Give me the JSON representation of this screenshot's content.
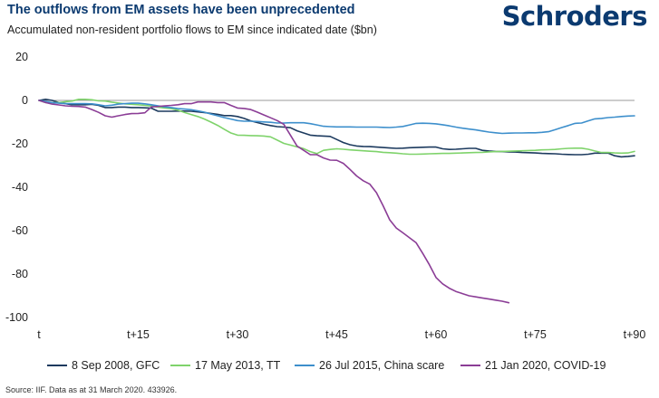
{
  "header": {
    "title": "The outflows from EM assets have been unprecedented",
    "subtitle": "Accumulated non-resident portfolio flows to EM since indicated date ($bn)",
    "logo_text": "Schroders"
  },
  "footer": {
    "source": "Source: IIF. Data as at 31 March 2020. 433926."
  },
  "colors": {
    "gfc": "#1c3a5e",
    "tt": "#7fd36b",
    "china": "#3d8fcc",
    "covid": "#8b3d96",
    "zero_line": "#9a9a9a"
  },
  "chart_data": {
    "type": "line",
    "title": "The outflows from EM assets have been unprecedented",
    "ylabel": "Accumulated non-resident portfolio flows to EM since indicated date ($bn)",
    "xlabel": "",
    "xlim": [
      0,
      90
    ],
    "ylim": [
      -100,
      20
    ],
    "x_ticks": [
      {
        "value": 0,
        "label": "t"
      },
      {
        "value": 15,
        "label": "t+15"
      },
      {
        "value": 30,
        "label": "t+30"
      },
      {
        "value": 45,
        "label": "t+45"
      },
      {
        "value": 60,
        "label": "t+60"
      },
      {
        "value": 75,
        "label": "t+75"
      },
      {
        "value": 90,
        "label": "t+90"
      }
    ],
    "y_ticks": [
      20,
      0,
      -20,
      -40,
      -60,
      -80,
      -100
    ],
    "legend_position": "bottom",
    "series": [
      {
        "name": "8 Sep 2008, GFC",
        "key": "gfc",
        "x": [
          0,
          1,
          2,
          3,
          4,
          5,
          6,
          7,
          8,
          9,
          10,
          11,
          12,
          13,
          14,
          15,
          16,
          17,
          18,
          19,
          20,
          21,
          22,
          23,
          24,
          25,
          26,
          27,
          28,
          29,
          30,
          31,
          32,
          33,
          34,
          35,
          36,
          37,
          38,
          39,
          40,
          41,
          42,
          43,
          44,
          45,
          46,
          47,
          48,
          49,
          50,
          51,
          52,
          53,
          54,
          55,
          56,
          57,
          58,
          59,
          60,
          61,
          62,
          63,
          64,
          65,
          66,
          67,
          68,
          69,
          70,
          71,
          72,
          73,
          74,
          75,
          76,
          77,
          78,
          79,
          80,
          81,
          82,
          83,
          84,
          85,
          86,
          87,
          88,
          89,
          90
        ],
        "values": [
          0,
          0.5,
          0,
          -1,
          -1.5,
          -2,
          -2,
          -2,
          -1.8,
          -2.3,
          -3.3,
          -3.3,
          -3.1,
          -3.1,
          -3.3,
          -3.3,
          -3.4,
          -3.6,
          -5,
          -5,
          -5,
          -4.9,
          -4.9,
          -5,
          -5.3,
          -5.6,
          -6,
          -6.4,
          -7,
          -7,
          -7.4,
          -8.3,
          -9.4,
          -10.2,
          -11,
          -11.6,
          -12.1,
          -12.3,
          -12.6,
          -14,
          -15,
          -16,
          -16.3,
          -16.4,
          -16.6,
          -18,
          -19.4,
          -20.4,
          -21,
          -21.2,
          -21.3,
          -21.5,
          -21.7,
          -21.9,
          -22.1,
          -22,
          -21.8,
          -21.7,
          -21.6,
          -21.5,
          -21.5,
          -22.3,
          -22.6,
          -22.5,
          -22.3,
          -22.1,
          -22.1,
          -23,
          -23.3,
          -23.5,
          -23.6,
          -23.7,
          -23.8,
          -24,
          -24.1,
          -24.2,
          -24.4,
          -24.5,
          -24.6,
          -24.8,
          -24.9,
          -25,
          -25,
          -24.8,
          -24.3,
          -24.3,
          -24.3,
          -25.5,
          -26,
          -25.8,
          -25.5
        ]
      },
      {
        "name": "17 May 2013, TT",
        "key": "tt",
        "x": [
          0,
          1,
          2,
          3,
          4,
          5,
          6,
          7,
          8,
          9,
          10,
          11,
          12,
          13,
          14,
          15,
          16,
          17,
          18,
          19,
          20,
          21,
          22,
          23,
          24,
          25,
          26,
          27,
          28,
          29,
          30,
          31,
          32,
          33,
          34,
          35,
          36,
          37,
          38,
          39,
          40,
          41,
          42,
          43,
          44,
          45,
          46,
          47,
          48,
          49,
          50,
          51,
          52,
          53,
          54,
          55,
          56,
          57,
          58,
          59,
          60,
          61,
          62,
          63,
          64,
          65,
          66,
          67,
          68,
          69,
          70,
          71,
          72,
          73,
          74,
          75,
          76,
          77,
          78,
          79,
          80,
          81,
          82,
          83,
          84,
          85,
          86,
          87,
          88,
          89,
          90
        ],
        "values": [
          0,
          -1,
          -1,
          -1,
          -0.6,
          -0.3,
          0.5,
          0.5,
          0.3,
          -0.2,
          -0.3,
          -0.8,
          -1.2,
          -1.6,
          -1.8,
          -2,
          -2.3,
          -2.6,
          -3.1,
          -3.5,
          -3.8,
          -4.5,
          -5.6,
          -6.5,
          -7.4,
          -8.6,
          -10,
          -11.5,
          -13.3,
          -15,
          -16,
          -16.1,
          -16.2,
          -16.3,
          -16.4,
          -16.8,
          -18.3,
          -19.8,
          -20.6,
          -21.4,
          -22.2,
          -23.6,
          -24.5,
          -23,
          -22.6,
          -22.3,
          -22.5,
          -22.8,
          -23,
          -23.2,
          -23.4,
          -23.6,
          -23.9,
          -24.1,
          -24.3,
          -24.6,
          -24.8,
          -24.8,
          -24.7,
          -24.6,
          -24.5,
          -24.4,
          -24.4,
          -24.3,
          -24.2,
          -24.1,
          -24,
          -23.9,
          -23.7,
          -23.6,
          -23.5,
          -23.4,
          -23.3,
          -23.2,
          -23.1,
          -23,
          -22.8,
          -22.7,
          -22.6,
          -22.3,
          -22.1,
          -22,
          -22,
          -22.5,
          -23.3,
          -24,
          -24,
          -24.2,
          -24.3,
          -24.2,
          -23.5
        ]
      },
      {
        "name": "26 Jul 2015, China scare",
        "key": "china",
        "x": [
          0,
          1,
          2,
          3,
          4,
          5,
          6,
          7,
          8,
          9,
          10,
          11,
          12,
          13,
          14,
          15,
          16,
          17,
          18,
          19,
          20,
          21,
          22,
          23,
          24,
          25,
          26,
          27,
          28,
          29,
          30,
          31,
          32,
          33,
          34,
          35,
          36,
          37,
          38,
          39,
          40,
          41,
          42,
          43,
          44,
          45,
          46,
          47,
          48,
          49,
          50,
          51,
          52,
          53,
          54,
          55,
          56,
          57,
          58,
          59,
          60,
          61,
          62,
          63,
          64,
          65,
          66,
          67,
          68,
          69,
          70,
          71,
          72,
          73,
          74,
          75,
          76,
          77,
          78,
          79,
          80,
          81,
          82,
          83,
          84,
          85,
          86,
          87,
          88,
          89,
          90
        ],
        "values": [
          0,
          -0.5,
          -1,
          -1.3,
          -1.5,
          -1.5,
          -1.5,
          -1.5,
          -1.6,
          -2,
          -2.5,
          -2.2,
          -1.7,
          -1.5,
          -1.3,
          -1.3,
          -1.6,
          -2,
          -2.5,
          -3,
          -3.3,
          -3.8,
          -4,
          -4.3,
          -4.8,
          -5.4,
          -6.3,
          -7.1,
          -7.9,
          -8.6,
          -9.3,
          -9.6,
          -9.6,
          -9.7,
          -9.9,
          -10.1,
          -10.4,
          -10.4,
          -10.3,
          -10.3,
          -10.3,
          -10.7,
          -11.3,
          -11.9,
          -12.1,
          -12.2,
          -12.2,
          -12.2,
          -12.3,
          -12.3,
          -12.3,
          -12.3,
          -12.4,
          -12.5,
          -12.3,
          -12,
          -11.3,
          -10.6,
          -10.5,
          -10.6,
          -10.8,
          -11.2,
          -11.7,
          -12.3,
          -12.8,
          -13.2,
          -13.6,
          -14.1,
          -14.6,
          -14.9,
          -15.2,
          -15.1,
          -15,
          -15,
          -14.9,
          -14.9,
          -14.7,
          -14.4,
          -13.5,
          -12.5,
          -11.6,
          -10.6,
          -10.4,
          -9.4,
          -8.5,
          -8.3,
          -7.9,
          -7.7,
          -7.4,
          -7.2,
          -7.1
        ]
      },
      {
        "name": "21 Jan 2020, COVID-19",
        "key": "covid",
        "x": [
          0,
          1,
          2,
          3,
          4,
          5,
          6,
          7,
          8,
          9,
          10,
          11,
          12,
          13,
          14,
          15,
          16,
          17,
          18,
          19,
          20,
          21,
          22,
          23,
          24,
          25,
          26,
          27,
          28,
          29,
          30,
          31,
          32,
          33,
          34,
          35,
          36,
          37,
          38,
          39,
          40,
          41,
          42,
          43,
          44,
          45,
          46,
          47,
          48,
          49,
          50,
          51,
          52,
          53,
          54,
          55,
          56,
          57,
          58,
          59,
          60,
          61,
          62,
          63,
          64,
          65,
          66,
          67,
          68,
          69,
          70,
          71
        ],
        "values": [
          0,
          -1,
          -1.7,
          -2.1,
          -2.5,
          -2.7,
          -2.8,
          -3.1,
          -4.2,
          -5.5,
          -7.1,
          -7.7,
          -7.1,
          -6.5,
          -6.1,
          -6,
          -5.7,
          -3,
          -2.8,
          -2.5,
          -2.3,
          -2,
          -1.5,
          -1.5,
          -0.7,
          -0.7,
          -0.7,
          -1,
          -1,
          -2.3,
          -3.5,
          -3.7,
          -4.2,
          -5.4,
          -6.7,
          -8,
          -9.3,
          -11,
          -16,
          -21,
          -23,
          -25,
          -25,
          -26.5,
          -27.5,
          -27.6,
          -29,
          -31.8,
          -34.8,
          -37,
          -38.6,
          -42.5,
          -48.5,
          -55,
          -58.8,
          -61,
          -63.3,
          -65.6,
          -70.5,
          -75.7,
          -81.6,
          -84.5,
          -86.5,
          -88,
          -89,
          -90,
          -90.5,
          -91,
          -91.5,
          -92,
          -92.5,
          -93.2
        ]
      }
    ]
  }
}
